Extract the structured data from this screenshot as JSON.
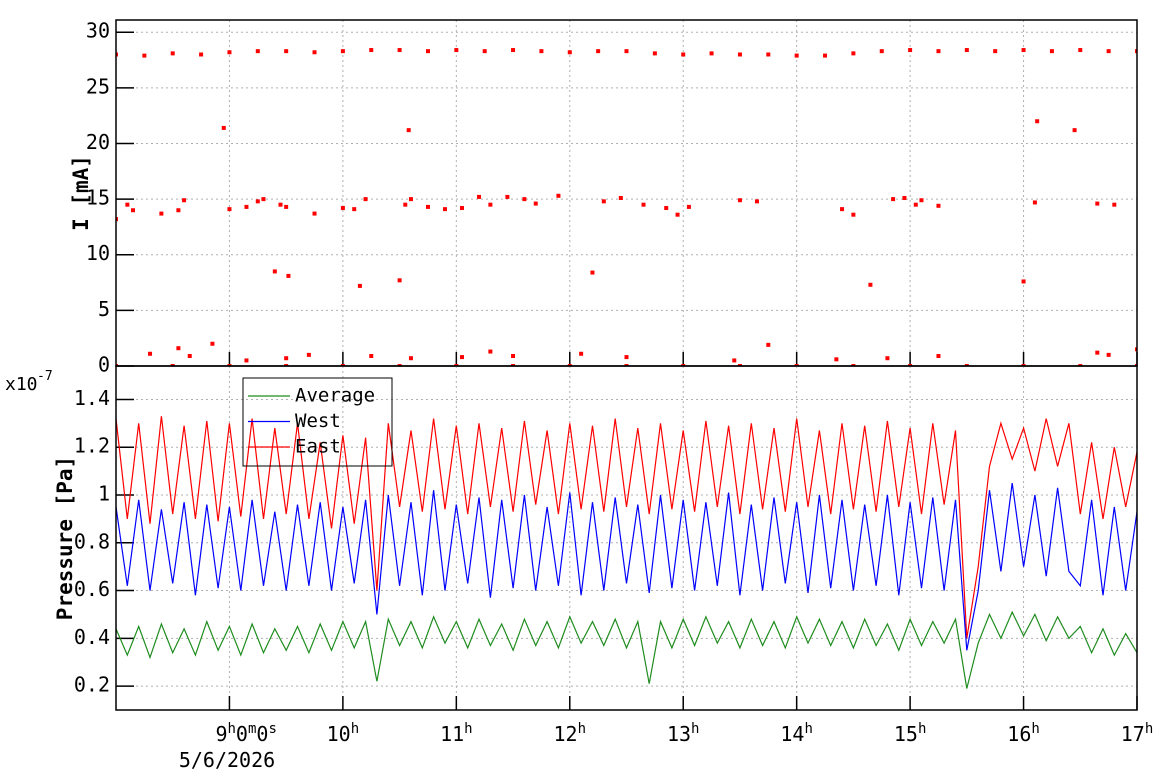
{
  "chart_data": [
    {
      "type": "scatter",
      "ylabel": "I [mA]",
      "xlim": [
        8,
        17
      ],
      "xticks": [
        9,
        10,
        11,
        12,
        13,
        14,
        15,
        16,
        17
      ],
      "ylim": [
        0,
        31.1
      ],
      "yticks": [
        0,
        5,
        10,
        15,
        20,
        25,
        30
      ],
      "grid": true,
      "series": [
        {
          "color": "#ff0000",
          "x": [
            8.0,
            8.25,
            8.5,
            8.75,
            9.0,
            9.25,
            9.5,
            9.75,
            10.0,
            10.25,
            10.5,
            10.75,
            11.0,
            11.25,
            11.5,
            11.75,
            12.0,
            12.25,
            12.5,
            12.75,
            13.0,
            13.25,
            13.5,
            13.75,
            14.0,
            14.25,
            14.5,
            14.75,
            15.0,
            15.25,
            15.5,
            15.75,
            16.0,
            16.25,
            16.5,
            16.75,
            17.0,
            8.95,
            10.58,
            16.12,
            16.45,
            8.0,
            8.1,
            8.15,
            8.4,
            8.55,
            8.6,
            9.0,
            9.15,
            9.25,
            9.3,
            9.45,
            9.5,
            9.75,
            10.0,
            10.1,
            10.2,
            10.55,
            10.6,
            10.75,
            10.9,
            11.05,
            11.2,
            11.3,
            11.45,
            11.6,
            11.7,
            11.9,
            12.3,
            12.45,
            12.65,
            12.85,
            12.95,
            13.05,
            13.5,
            13.65,
            14.4,
            14.5,
            14.85,
            14.95,
            15.05,
            15.1,
            15.25,
            16.1,
            16.65,
            16.8,
            9.4,
            9.52,
            10.15,
            10.5,
            12.2,
            14.65,
            16.0,
            8.3,
            8.55,
            8.65,
            8.85,
            9.15,
            9.5,
            9.7,
            10.25,
            10.6,
            11.05,
            11.3,
            11.5,
            12.1,
            12.5,
            13.45,
            13.75,
            14.35,
            14.8,
            15.25,
            16.65,
            16.75,
            17.0,
            8.0,
            8.5,
            9.0,
            9.5,
            10.0,
            10.5,
            11.0,
            11.5,
            12.0,
            12.5,
            13.0,
            13.5,
            14.0,
            14.5,
            15.0,
            15.5,
            16.0,
            16.5,
            17.0
          ],
          "values": [
            28.0,
            27.9,
            28.1,
            28.0,
            28.2,
            28.3,
            28.3,
            28.2,
            28.3,
            28.4,
            28.4,
            28.3,
            28.4,
            28.3,
            28.4,
            28.3,
            28.2,
            28.3,
            28.3,
            28.1,
            28.0,
            28.1,
            28.0,
            28.0,
            27.9,
            27.9,
            28.1,
            28.3,
            28.4,
            28.3,
            28.4,
            28.3,
            28.4,
            28.3,
            28.4,
            28.3,
            28.3,
            21.4,
            21.2,
            22.0,
            21.2,
            13.2,
            14.5,
            14.0,
            13.7,
            14.0,
            14.9,
            14.1,
            14.3,
            14.8,
            15.0,
            14.5,
            14.3,
            13.7,
            14.2,
            14.1,
            15.0,
            14.5,
            15.0,
            14.3,
            14.1,
            14.2,
            15.2,
            14.5,
            15.2,
            15.0,
            14.6,
            15.3,
            14.8,
            15.1,
            14.5,
            14.2,
            13.6,
            14.3,
            14.9,
            14.8,
            14.1,
            13.6,
            15.0,
            15.1,
            14.5,
            14.9,
            14.4,
            14.7,
            14.6,
            14.5,
            8.5,
            8.1,
            7.2,
            7.7,
            8.4,
            7.3,
            7.6,
            1.1,
            1.6,
            0.9,
            2.0,
            0.5,
            0.7,
            1.0,
            0.9,
            0.7,
            0.8,
            1.3,
            0.9,
            1.1,
            0.8,
            0.5,
            1.9,
            0.6,
            0.7,
            0.9,
            1.2,
            1.0,
            1.5,
            0,
            0,
            0,
            0,
            0,
            0,
            0,
            0,
            0,
            0,
            0,
            0,
            0,
            0,
            0,
            0,
            0,
            0,
            0
          ]
        }
      ]
    },
    {
      "type": "line",
      "ylabel": "Pressure [Pa]",
      "yscale_base": "x10",
      "yscale_exp": "-7",
      "x_date": "5/6/2026",
      "xlim": [
        8,
        17
      ],
      "xticks": [
        {
          "value": 9,
          "label": "9h0m0s"
        },
        {
          "value": 10,
          "label": "10h"
        },
        {
          "value": 11,
          "label": "11h"
        },
        {
          "value": 12,
          "label": "12h"
        },
        {
          "value": 13,
          "label": "13h"
        },
        {
          "value": 14,
          "label": "14h"
        },
        {
          "value": 15,
          "label": "15h"
        },
        {
          "value": 16,
          "label": "16h"
        },
        {
          "value": 17,
          "label": "17h"
        }
      ],
      "ylim": [
        0.1,
        1.54
      ],
      "yticks": [
        0.2,
        0.4,
        0.6,
        0.8,
        1,
        1.2,
        1.4
      ],
      "grid": true,
      "legend": "top-left",
      "x": [
        8.0,
        8.1,
        8.2,
        8.3,
        8.4,
        8.5,
        8.6,
        8.7,
        8.8,
        8.9,
        9.0,
        9.1,
        9.2,
        9.3,
        9.4,
        9.5,
        9.6,
        9.7,
        9.8,
        9.9,
        10.0,
        10.1,
        10.2,
        10.3,
        10.4,
        10.5,
        10.6,
        10.7,
        10.8,
        10.9,
        11.0,
        11.1,
        11.2,
        11.3,
        11.4,
        11.5,
        11.6,
        11.7,
        11.8,
        11.9,
        12.0,
        12.1,
        12.2,
        12.3,
        12.4,
        12.5,
        12.6,
        12.7,
        12.8,
        12.9,
        13.0,
        13.1,
        13.2,
        13.3,
        13.4,
        13.5,
        13.6,
        13.7,
        13.8,
        13.9,
        14.0,
        14.1,
        14.2,
        14.3,
        14.4,
        14.5,
        14.6,
        14.7,
        14.8,
        14.9,
        15.0,
        15.1,
        15.2,
        15.3,
        15.4,
        15.5,
        15.6,
        15.7,
        15.8,
        15.9,
        16.0,
        16.1,
        16.2,
        16.3,
        16.4,
        16.5,
        16.6,
        16.7,
        16.8,
        16.9,
        17.0
      ],
      "series": [
        {
          "name": "Average",
          "color": "#1e8c1e",
          "values": [
            0.44,
            0.33,
            0.45,
            0.32,
            0.46,
            0.34,
            0.44,
            0.33,
            0.47,
            0.35,
            0.45,
            0.33,
            0.46,
            0.34,
            0.44,
            0.35,
            0.45,
            0.34,
            0.46,
            0.35,
            0.47,
            0.36,
            0.47,
            0.22,
            0.48,
            0.37,
            0.47,
            0.36,
            0.49,
            0.38,
            0.47,
            0.36,
            0.48,
            0.37,
            0.46,
            0.35,
            0.48,
            0.37,
            0.47,
            0.36,
            0.49,
            0.38,
            0.47,
            0.37,
            0.48,
            0.36,
            0.47,
            0.21,
            0.47,
            0.36,
            0.48,
            0.37,
            0.49,
            0.38,
            0.47,
            0.36,
            0.48,
            0.37,
            0.47,
            0.36,
            0.49,
            0.38,
            0.48,
            0.37,
            0.47,
            0.36,
            0.48,
            0.37,
            0.46,
            0.35,
            0.48,
            0.37,
            0.47,
            0.38,
            0.48,
            0.19,
            0.38,
            0.5,
            0.4,
            0.51,
            0.41,
            0.5,
            0.39,
            0.49,
            0.4,
            0.45,
            0.34,
            0.44,
            0.33,
            0.42,
            0.34
          ]
        },
        {
          "name": "West",
          "color": "#0000ff",
          "values": [
            0.95,
            0.62,
            0.98,
            0.6,
            0.94,
            0.63,
            0.97,
            0.58,
            0.96,
            0.61,
            0.95,
            0.6,
            0.98,
            0.62,
            0.93,
            0.6,
            0.96,
            0.62,
            0.97,
            0.6,
            0.95,
            0.63,
            0.98,
            0.5,
            1.0,
            0.62,
            0.97,
            0.58,
            1.02,
            0.6,
            0.96,
            0.63,
            0.99,
            0.57,
            0.98,
            0.61,
            1.0,
            0.6,
            0.95,
            0.62,
            1.01,
            0.58,
            0.97,
            0.6,
            0.99,
            0.63,
            0.96,
            0.59,
            1.0,
            0.61,
            0.98,
            0.6,
            0.97,
            0.62,
            1.01,
            0.58,
            0.96,
            0.6,
            0.99,
            0.63,
            0.97,
            0.59,
            1.0,
            0.61,
            0.98,
            0.6,
            0.96,
            0.62,
            1.0,
            0.58,
            0.97,
            0.61,
            0.99,
            0.6,
            0.98,
            0.35,
            0.6,
            1.02,
            0.68,
            1.05,
            0.7,
            1.0,
            0.66,
            1.03,
            0.68,
            0.62,
            0.98,
            0.58,
            0.95,
            0.6,
            0.93
          ]
        },
        {
          "name": "East",
          "color": "#ff0000",
          "values": [
            1.32,
            0.9,
            1.3,
            0.88,
            1.33,
            0.92,
            1.29,
            0.9,
            1.31,
            0.89,
            1.3,
            0.91,
            1.32,
            0.9,
            1.28,
            0.92,
            1.3,
            0.9,
            1.22,
            0.86,
            1.25,
            0.88,
            1.24,
            0.6,
            1.3,
            0.95,
            1.27,
            0.93,
            1.32,
            0.94,
            1.29,
            0.92,
            1.3,
            0.95,
            1.28,
            0.93,
            1.31,
            0.96,
            1.27,
            0.92,
            1.3,
            0.94,
            1.29,
            0.93,
            1.32,
            0.95,
            1.28,
            0.92,
            1.3,
            0.94,
            1.27,
            0.93,
            1.31,
            0.95,
            1.29,
            0.92,
            1.3,
            0.94,
            1.28,
            0.93,
            1.32,
            0.95,
            1.27,
            0.92,
            1.3,
            0.94,
            1.29,
            0.93,
            1.31,
            0.95,
            1.28,
            0.92,
            1.3,
            0.96,
            1.27,
            0.4,
            0.7,
            1.12,
            1.3,
            1.15,
            1.28,
            1.1,
            1.32,
            1.12,
            1.3,
            0.92,
            1.22,
            0.9,
            1.2,
            0.95,
            1.18
          ]
        }
      ]
    }
  ]
}
